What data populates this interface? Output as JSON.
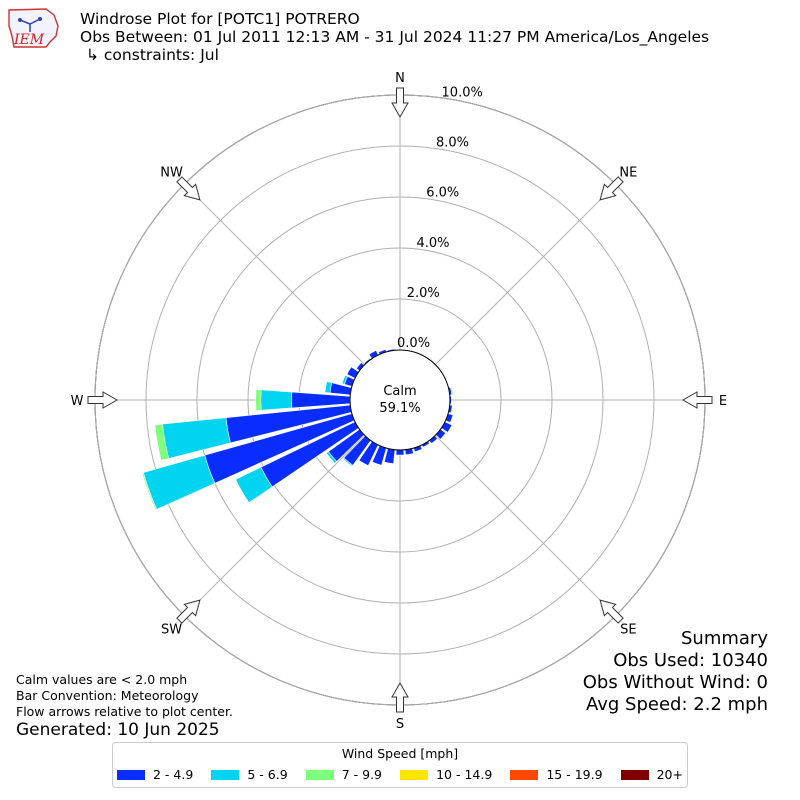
{
  "header": {
    "title": "Windrose Plot for [POTC1] POTRERO",
    "subtitle": "Obs Between: 01 Jul 2011 12:13 AM - 31 Jul 2024 11:27 PM America/Los_Angeles",
    "constraints": "↳ constraints: Jul",
    "logo_text": "IEM"
  },
  "notes": {
    "calm_note": "Calm values are < 2.0 mph",
    "bar_convention": "Bar Convention: Meteorology",
    "flow_note": "Flow arrows relative to plot center.",
    "generated": "Generated: 10 Jun 2025"
  },
  "summary": {
    "heading": "Summary",
    "obs_used": "Obs Used: 10340",
    "obs_without_wind": "Obs Without Wind: 0",
    "avg_speed": "Avg Speed: 2.2 mph"
  },
  "legend": {
    "title": "Wind Speed [mph]",
    "items": [
      {
        "label": "2 - 4.9",
        "color": "#0a2dff"
      },
      {
        "label": "5 - 6.9",
        "color": "#00d4f0"
      },
      {
        "label": "7 - 9.9",
        "color": "#7dff7d"
      },
      {
        "label": "10 - 14.9",
        "color": "#ffe600"
      },
      {
        "label": "15 - 19.9",
        "color": "#ff4800"
      },
      {
        "label": "20+",
        "color": "#800000"
      }
    ]
  },
  "chart_data": {
    "type": "windrose",
    "calm_label": "Calm",
    "calm_value": "59.1%",
    "calm_percent": 59.1,
    "radial_unit": "percent",
    "rlim": [
      0,
      10.0
    ],
    "radial_ticks": [
      "0.0%",
      "2.0%",
      "4.0%",
      "6.0%",
      "8.0%",
      "10.0%"
    ],
    "radial_tick_values": [
      0,
      2,
      4,
      6,
      8,
      10
    ],
    "grid": true,
    "cardinals": [
      {
        "label": "N",
        "deg": 0
      },
      {
        "label": "NE",
        "deg": 45
      },
      {
        "label": "E",
        "deg": 90
      },
      {
        "label": "SE",
        "deg": 135
      },
      {
        "label": "S",
        "deg": 180
      },
      {
        "label": "SW",
        "deg": 225
      },
      {
        "label": "W",
        "deg": 270
      },
      {
        "label": "NW",
        "deg": 315
      }
    ],
    "series_names": [
      "2 - 4.9",
      "5 - 6.9",
      "7 - 9.9",
      "10 - 14.9",
      "15 - 19.9",
      "20+"
    ],
    "directions": [
      {
        "deg": 0,
        "values": [
          0.02,
          0,
          0,
          0,
          0,
          0
        ]
      },
      {
        "deg": 10,
        "values": [
          0.02,
          0,
          0,
          0,
          0,
          0
        ]
      },
      {
        "deg": 20,
        "values": [
          0.0,
          0,
          0,
          0,
          0,
          0
        ]
      },
      {
        "deg": 30,
        "values": [
          0.0,
          0,
          0,
          0,
          0,
          0
        ]
      },
      {
        "deg": 40,
        "values": [
          0.0,
          0,
          0,
          0,
          0,
          0
        ]
      },
      {
        "deg": 50,
        "values": [
          0.0,
          0,
          0,
          0,
          0,
          0
        ]
      },
      {
        "deg": 60,
        "values": [
          0.0,
          0,
          0,
          0,
          0,
          0
        ]
      },
      {
        "deg": 70,
        "values": [
          0.02,
          0,
          0.02,
          0,
          0,
          0
        ]
      },
      {
        "deg": 80,
        "values": [
          0.08,
          0,
          0.05,
          0,
          0,
          0
        ]
      },
      {
        "deg": 90,
        "values": [
          0.06,
          0,
          0,
          0,
          0,
          0
        ]
      },
      {
        "deg": 100,
        "values": [
          0.1,
          0,
          0,
          0,
          0,
          0
        ]
      },
      {
        "deg": 110,
        "values": [
          0.2,
          0,
          0,
          0,
          0,
          0
        ]
      },
      {
        "deg": 120,
        "values": [
          0.3,
          0,
          0,
          0,
          0,
          0
        ]
      },
      {
        "deg": 130,
        "values": [
          0.25,
          0,
          0,
          0,
          0,
          0
        ]
      },
      {
        "deg": 140,
        "values": [
          0.15,
          0,
          0,
          0,
          0,
          0
        ]
      },
      {
        "deg": 150,
        "values": [
          0.1,
          0,
          0,
          0,
          0,
          0
        ]
      },
      {
        "deg": 160,
        "values": [
          0.15,
          0,
          0,
          0,
          0,
          0
        ]
      },
      {
        "deg": 170,
        "values": [
          0.2,
          0,
          0,
          0,
          0,
          0
        ]
      },
      {
        "deg": 180,
        "values": [
          0.2,
          0,
          0,
          0,
          0,
          0
        ]
      },
      {
        "deg": 190,
        "values": [
          0.55,
          0,
          0,
          0,
          0,
          0
        ]
      },
      {
        "deg": 200,
        "values": [
          0.7,
          0,
          0,
          0,
          0,
          0
        ]
      },
      {
        "deg": 210,
        "values": [
          0.9,
          0,
          0,
          0,
          0,
          0
        ]
      },
      {
        "deg": 220,
        "values": [
          1.2,
          0.05,
          0,
          0,
          0,
          0
        ]
      },
      {
        "deg": 230,
        "values": [
          1.5,
          0.1,
          0,
          0,
          0,
          0
        ]
      },
      {
        "deg": 240,
        "values": [
          4.1,
          1.1,
          0,
          0,
          0,
          0
        ]
      },
      {
        "deg": 250,
        "values": [
          6.0,
          2.5,
          0.05,
          0,
          0,
          0
        ]
      },
      {
        "deg": 260,
        "values": [
          4.9,
          2.5,
          0.3,
          0,
          0,
          0
        ]
      },
      {
        "deg": 270,
        "values": [
          2.3,
          1.2,
          0.2,
          0,
          0,
          0
        ]
      },
      {
        "deg": 280,
        "values": [
          0.8,
          0.2,
          0,
          0,
          0,
          0
        ]
      },
      {
        "deg": 290,
        "values": [
          0.3,
          0.1,
          0,
          0,
          0,
          0
        ]
      },
      {
        "deg": 300,
        "values": [
          0.35,
          0,
          0,
          0,
          0,
          0
        ]
      },
      {
        "deg": 310,
        "values": [
          0.15,
          0,
          0,
          0,
          0,
          0
        ]
      },
      {
        "deg": 320,
        "values": [
          0.05,
          0,
          0,
          0,
          0,
          0
        ]
      },
      {
        "deg": 330,
        "values": [
          0.2,
          0,
          0,
          0,
          0,
          0
        ]
      },
      {
        "deg": 340,
        "values": [
          0.1,
          0,
          0,
          0,
          0,
          0
        ]
      },
      {
        "deg": 350,
        "values": [
          0.05,
          0,
          0,
          0,
          0,
          0
        ]
      }
    ]
  }
}
